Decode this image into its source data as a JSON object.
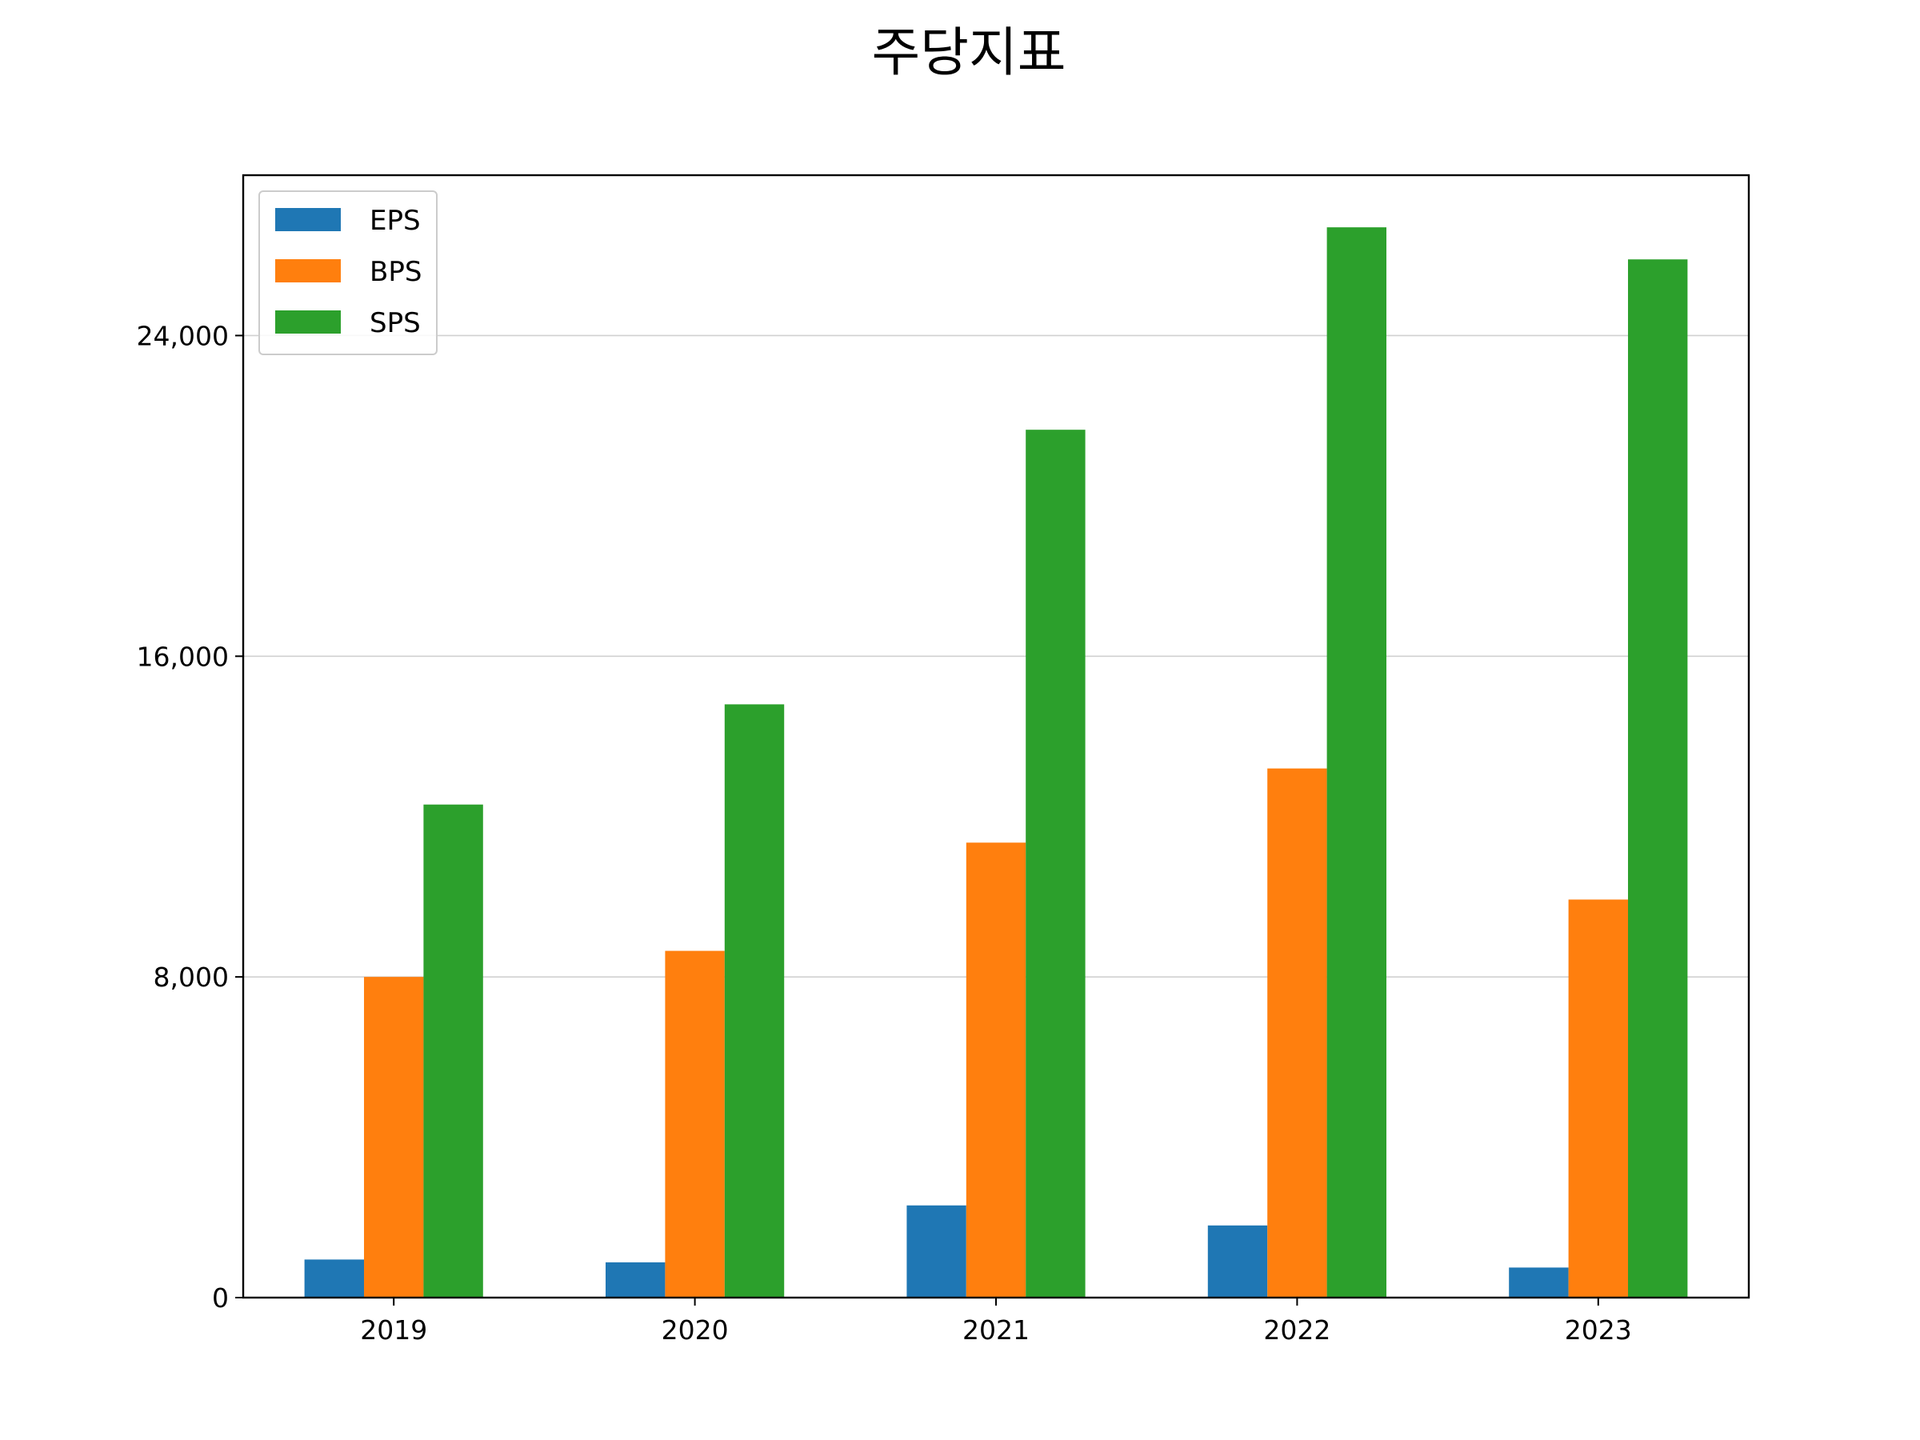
{
  "chart_data": {
    "type": "bar",
    "title": "주당지표",
    "xlabel": "",
    "ylabel": "",
    "categories": [
      "2019",
      "2020",
      "2021",
      "2022",
      "2023"
    ],
    "series": [
      {
        "name": "EPS",
        "color": "#1f77b4",
        "values": [
          950,
          880,
          2300,
          1800,
          750
        ]
      },
      {
        "name": "BPS",
        "color": "#ff7f0e",
        "values": [
          8000,
          8650,
          11350,
          13200,
          9930
        ]
      },
      {
        "name": "SPS",
        "color": "#2ca02c",
        "values": [
          12300,
          14800,
          21650,
          26700,
          25900
        ]
      }
    ],
    "ylim": [
      0,
      28000
    ],
    "yticks": [
      0,
      8000,
      16000,
      24000
    ],
    "ytick_labels": [
      "0",
      "8,000",
      "16,000",
      "24,000"
    ],
    "grid": "horizontal",
    "legend_position": "top-left"
  }
}
